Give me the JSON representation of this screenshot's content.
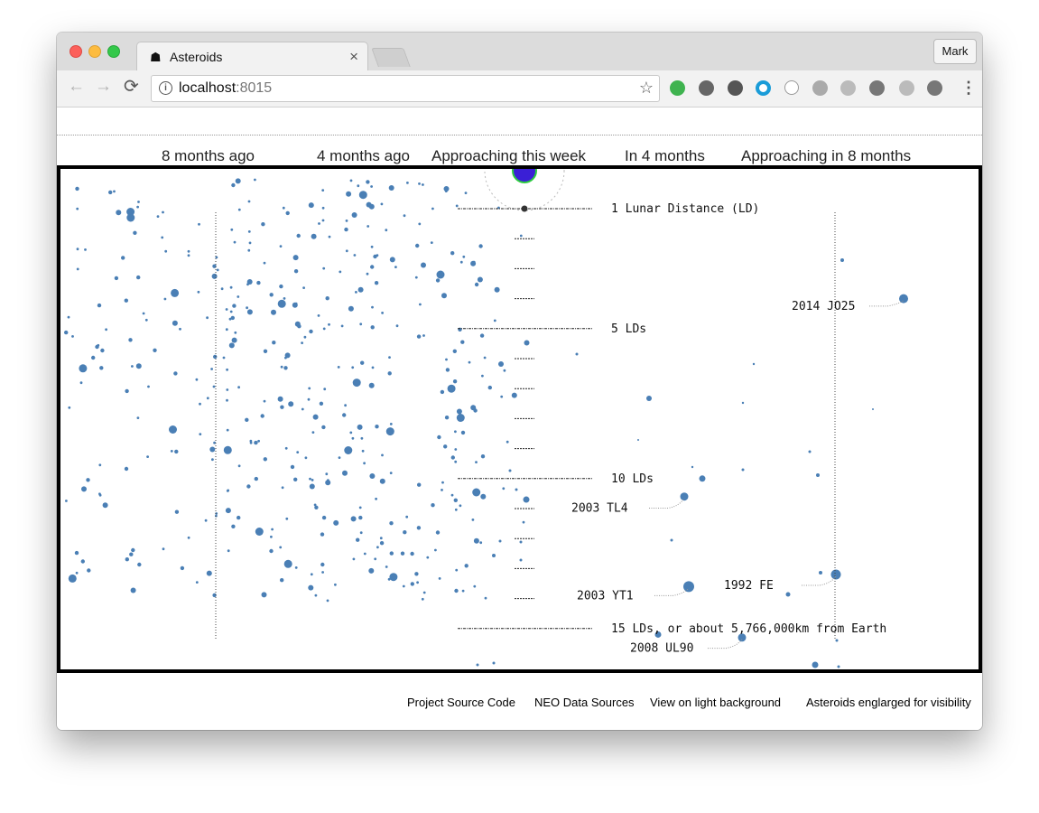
{
  "browser": {
    "tab_title": "Asteroids",
    "tab_close": "×",
    "profile": "Mark",
    "url_host": "localhost",
    "url_port": ":8015",
    "nav": {
      "back": "←",
      "forward": "→",
      "reload": "⟳"
    },
    "star": "☆",
    "menu": "⋮",
    "extensions": [
      "hangouts-icon",
      "ublock-icon",
      "onepassword-icon",
      "circle-ext-icon",
      "json-ext-icon",
      "save-ext-icon",
      "grid-ext-icon",
      "football-ext-icon",
      "timer-ext-icon",
      "camera-icon"
    ],
    "colors": {
      "tab_bar": "#dcdcdc",
      "accent_link": "#2a9bd1"
    }
  },
  "header": {
    "months": [
      "8 months ago",
      "4 months ago",
      "Approaching this week",
      "In 4 months",
      "Approaching in 8 months"
    ]
  },
  "chart_data": {
    "type": "scatter",
    "distance_labels": {
      "ld1": "1 Lunar Distance (LD)",
      "ld5": "5 LDs",
      "ld10": "10 LDs",
      "ld15": "15 LDs, or about 5,766,000km from Earth"
    },
    "named_asteroids": [
      {
        "name": "2014 JO25",
        "ld": 4.0
      },
      {
        "name": "2003 TL4",
        "ld": 10.6
      },
      {
        "name": "2003 YT1",
        "ld": 13.6
      },
      {
        "name": "1992 FE",
        "ld": 13.2
      },
      {
        "name": "2008 UL90",
        "ld": 15.3
      }
    ],
    "dot_color": "#4a7fb5",
    "earth_color": "#3a1fd6"
  },
  "footer": {
    "source_code": "Project Source Code",
    "data_sources": "NEO Data Sources",
    "light_bg": "View on light background",
    "note": "Asteroids englarged for visibility"
  }
}
